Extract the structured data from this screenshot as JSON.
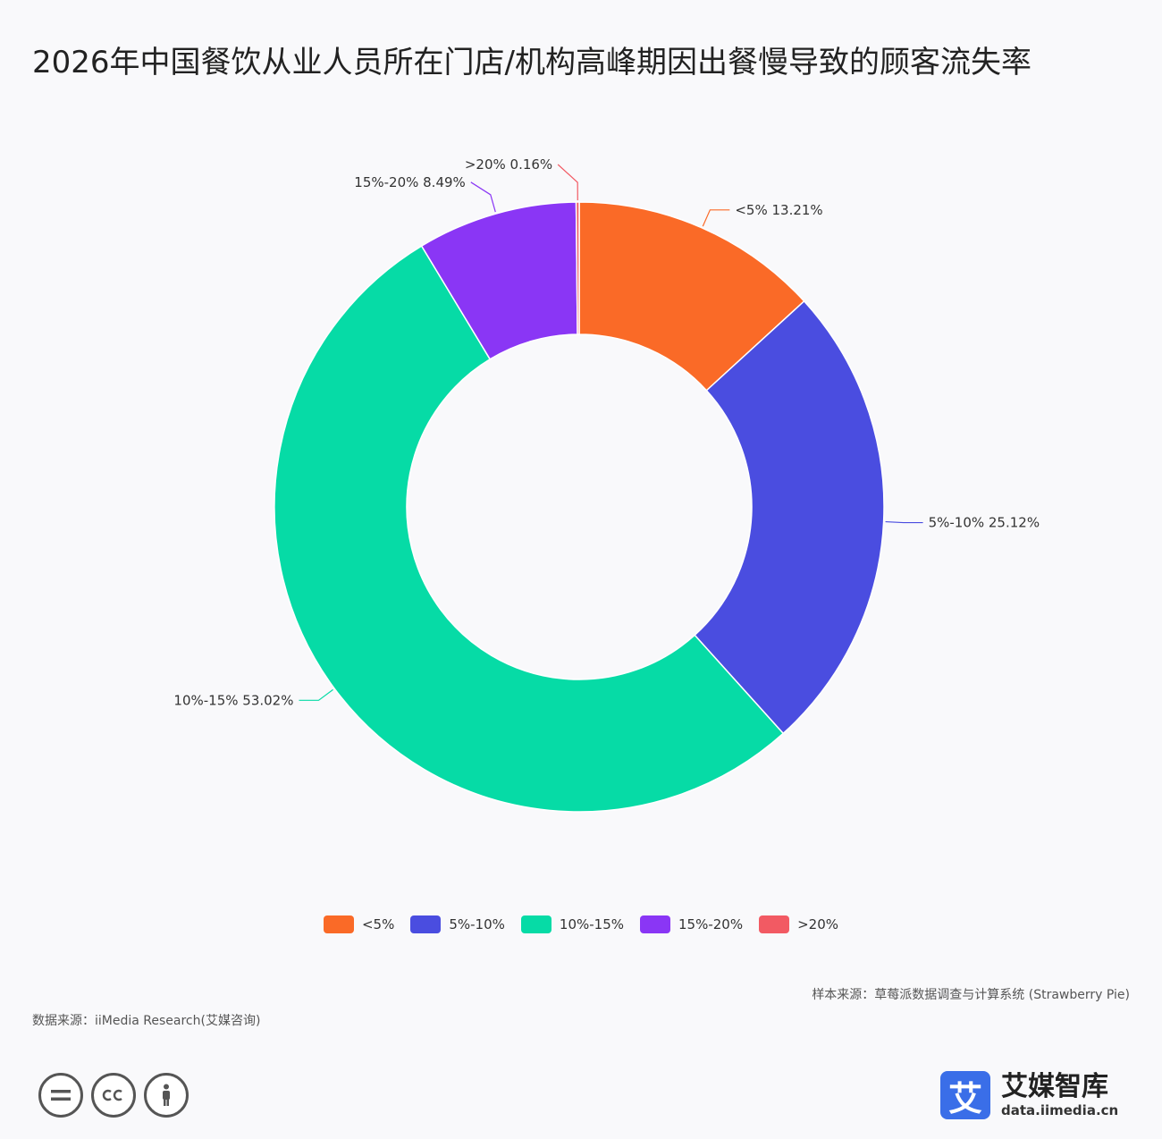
{
  "title": "2026年中国餐饮从业人员所在门店/机构高峰期因出餐慢导致的顾客流失率",
  "chart_data": {
    "type": "pie",
    "variant": "donut",
    "categories": [
      "<5%",
      "5%-10%",
      "10%-15%",
      "15%-20%",
      ">20%"
    ],
    "values": [
      13.21,
      25.12,
      53.02,
      8.49,
      0.16
    ],
    "labels": [
      "<5% 13.21%",
      "5%-10% 25.12%",
      "10%-15% 53.02%",
      "15%-20% 8.49%",
      ">20% 0.16%"
    ],
    "colors": [
      "#fa6a27",
      "#4a4de0",
      "#06dba6",
      "#8a36f5",
      "#f25a63"
    ],
    "legend_position": "bottom"
  },
  "legend": [
    {
      "label": "<5%",
      "color": "#fa6a27"
    },
    {
      "label": "5%-10%",
      "color": "#4a4de0"
    },
    {
      "label": "10%-15%",
      "color": "#06dba6"
    },
    {
      "label": "15%-20%",
      "color": "#8a36f5"
    },
    {
      "label": ">20%",
      "color": "#f25a63"
    }
  ],
  "footer": {
    "sample_source": "样本来源：草莓派数据调查与计算系统 (Strawberry Pie)",
    "data_source": "数据来源：iiMedia Research(艾媒咨询)",
    "cc_icons": [
      "equals-icon",
      "cc-icon",
      "person-icon"
    ]
  },
  "brand": {
    "logo_char": "艾",
    "name": "艾媒智库",
    "url": "data.iimedia.cn"
  }
}
